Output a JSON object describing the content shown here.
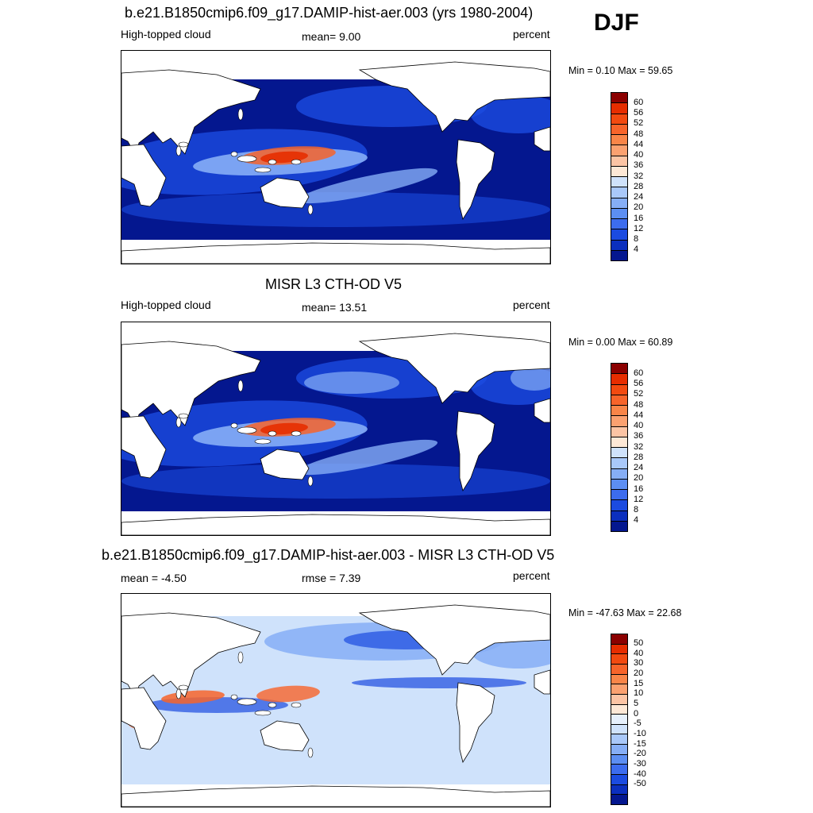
{
  "season": "DJF",
  "panels": [
    {
      "title": "b.e21.B1850cmip6.f09_g17.DAMIP-hist-aer.003 (yrs 1980-2004)",
      "left_label": "High-topped cloud",
      "center_label": "mean=   9.00",
      "right_label": "percent",
      "minmax": "Min =   0.10 Max =  59.65",
      "kind": "model",
      "colorbar": {
        "colors": [
          "#e62d00",
          "#f24a10",
          "#f7642a",
          "#f98548",
          "#fba170",
          "#fcc4a4",
          "#fde8d6",
          "#cfe2fb",
          "#a9c8f9",
          "#86aef6",
          "#5c8ef2",
          "#3c6cee",
          "#1b4be0",
          "#0b2fbe",
          "#04178f"
        ],
        "labels": [
          "60",
          "56",
          "52",
          "48",
          "44",
          "40",
          "36",
          "32",
          "28",
          "24",
          "20",
          "16",
          "12",
          "8",
          "4"
        ],
        "top_color": "#8b0000"
      }
    },
    {
      "title": "MISR L3 CTH-OD V5",
      "left_label": "High-topped cloud",
      "center_label": "mean=  13.51",
      "right_label": "percent",
      "minmax": "Min =   0.00 Max =  60.89",
      "kind": "obs",
      "colorbar": {
        "colors": [
          "#e62d00",
          "#f24a10",
          "#f7642a",
          "#f98548",
          "#fba170",
          "#fcc4a4",
          "#fde8d6",
          "#cfe2fb",
          "#a9c8f9",
          "#86aef6",
          "#5c8ef2",
          "#3c6cee",
          "#1b4be0",
          "#0b2fbe",
          "#04178f"
        ],
        "labels": [
          "60",
          "56",
          "52",
          "48",
          "44",
          "40",
          "36",
          "32",
          "28",
          "24",
          "20",
          "16",
          "12",
          "8",
          "4"
        ],
        "top_color": "#8b0000"
      }
    },
    {
      "title": "b.e21.B1850cmip6.f09_g17.DAMIP-hist-aer.003 - MISR L3 CTH-OD V5",
      "left_label": "mean =  -4.50",
      "center_label": "rmse =   7.39",
      "right_label": "percent",
      "minmax": "Min = -47.63 Max =  22.68",
      "kind": "diff",
      "colorbar": {
        "colors": [
          "#e62d00",
          "#f24a10",
          "#f7642a",
          "#f98548",
          "#fba170",
          "#fcc4a4",
          "#fde8d6",
          "#e6f0fc",
          "#cfe2fb",
          "#a9c8f9",
          "#86aef6",
          "#5c8ef2",
          "#3c6cee",
          "#1b4be0",
          "#0b2fbe",
          "#04178f"
        ],
        "labels": [
          "50",
          "40",
          "30",
          "20",
          "15",
          "10",
          "5",
          "0",
          "-5",
          "-10",
          "-15",
          "-20",
          "-30",
          "-40",
          "-50"
        ],
        "top_color": "#8b0000"
      }
    }
  ],
  "colors": {
    "ocean_deep": "#04178f",
    "ocean_mid": "#1b4be0",
    "ocean_light": "#86aef6",
    "warm": "#f7642a",
    "hot": "#e62d00",
    "pale": "#cfe2fb",
    "land": "#ffffff"
  }
}
